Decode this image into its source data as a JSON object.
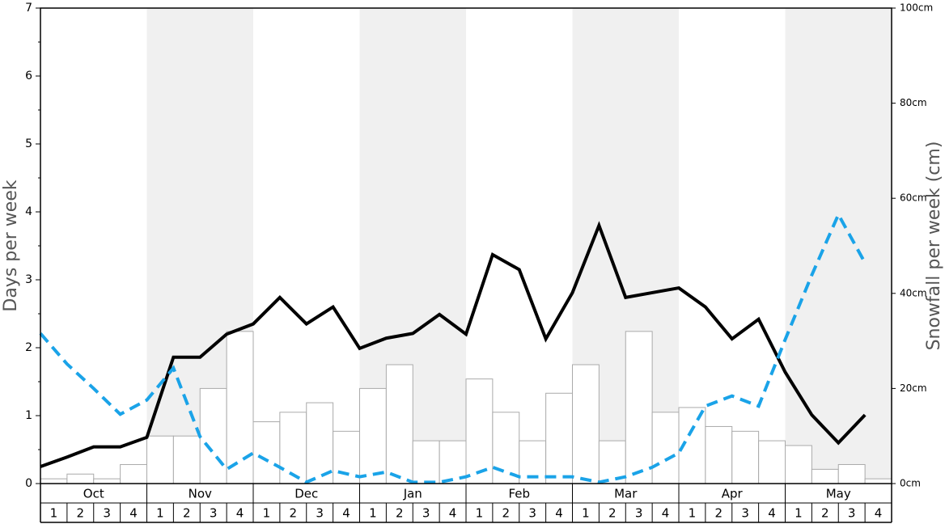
{
  "chart_data": {
    "type": "bar",
    "ylabel": "Days per week",
    "y2label": "Snowfall per week (cm)",
    "months": [
      "Oct",
      "Nov",
      "Dec",
      "Jan",
      "Feb",
      "Mar",
      "Apr",
      "May"
    ],
    "weeks": [
      "1",
      "2",
      "3",
      "4"
    ],
    "ylim": [
      0,
      7
    ],
    "yticks": [
      0,
      1,
      2,
      3,
      4,
      5,
      6,
      7
    ],
    "y2lim": [
      0,
      100
    ],
    "y2ticks": [
      {
        "value": 0,
        "label": "0cm"
      },
      {
        "value": 20,
        "label": "20cm"
      },
      {
        "value": 40,
        "label": "40cm"
      },
      {
        "value": 60,
        "label": "60cm"
      },
      {
        "value": 80,
        "label": "80cm"
      },
      {
        "value": 100,
        "label": "100cm"
      }
    ],
    "series": [
      {
        "type": "bar",
        "axis": "y2",
        "color": "#ffffff",
        "values": [
          1,
          2,
          1,
          4,
          10,
          10,
          20,
          32,
          13,
          15,
          17,
          11,
          20,
          25,
          9,
          9,
          22,
          15,
          9,
          19,
          25,
          9,
          32,
          15,
          16,
          12,
          11,
          9,
          8,
          3,
          4,
          1
        ]
      },
      {
        "type": "line",
        "color": "#000000",
        "values": [
          0.25,
          0.39,
          0.54,
          0.54,
          0.68,
          1.86,
          1.86,
          2.2,
          2.35,
          2.74,
          2.35,
          2.6,
          1.99,
          2.14,
          2.21,
          2.49,
          2.2,
          3.37,
          3.15,
          2.13,
          2.81,
          3.8,
          2.74,
          2.81,
          2.88,
          2.6,
          2.13,
          2.42,
          1.64,
          1.01,
          0.6,
          1.01
        ]
      },
      {
        "type": "line",
        "color": "#1aa3e8",
        "dashed": true,
        "values": [
          2.21,
          1.76,
          1.4,
          1.02,
          1.23,
          1.7,
          0.69,
          0.21,
          0.45,
          0.24,
          0.02,
          0.19,
          0.1,
          0.17,
          0.02,
          0.02,
          0.1,
          0.24,
          0.1,
          0.1,
          0.1,
          0.02,
          0.1,
          0.24,
          0.45,
          1.14,
          1.29,
          1.14,
          2.12,
          3.07,
          3.96,
          3.25
        ]
      }
    ]
  }
}
